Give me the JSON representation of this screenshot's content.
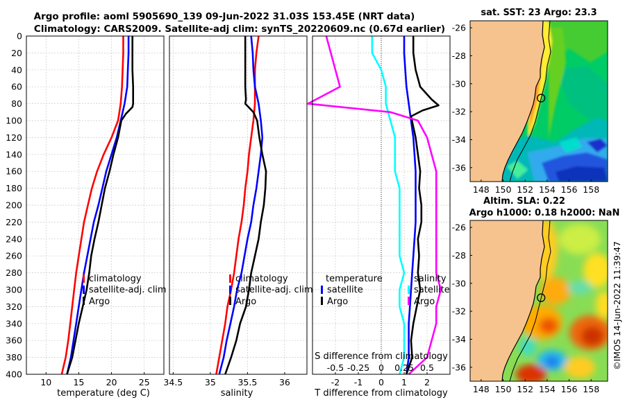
{
  "header": {
    "line1": "Argo profile: aoml 5905690_139 09-Jun-2022 31.03S 153.45E (NRT data)",
    "line2": "Climatology: CARS2009. Satellite-adj clim: synTS_20220609.nc (0.67d earlier)"
  },
  "colors": {
    "climatology": "#ff0000",
    "satellite": "#0000ff",
    "argo": "#000000",
    "salinity_diff": "#ff00ff",
    "salinity_sat": "#00ffff",
    "land": "#f6c38f",
    "grid": "#c9c9c9"
  },
  "chart_data": [
    {
      "type": "line",
      "id": "temperature",
      "xlabel": "temperature (deg C)",
      "ylabel": "",
      "xlim": [
        7,
        28
      ],
      "ylim": [
        400,
        0
      ],
      "x_ticks": [
        10,
        15,
        20,
        25
      ],
      "y_ticks": [
        0,
        20,
        40,
        60,
        80,
        100,
        120,
        140,
        160,
        180,
        200,
        220,
        240,
        260,
        280,
        300,
        320,
        340,
        360,
        380,
        400
      ],
      "legend": [
        "climatology",
        "satellite-adj. clim",
        "Argo"
      ],
      "legend_position": "bottom-right",
      "series": [
        {
          "name": "climatology",
          "color": "#ff0000",
          "points": [
            [
              21.8,
              0
            ],
            [
              21.8,
              20
            ],
            [
              21.7,
              40
            ],
            [
              21.6,
              60
            ],
            [
              21.4,
              80
            ],
            [
              21.0,
              100
            ],
            [
              20.0,
              120
            ],
            [
              18.8,
              140
            ],
            [
              17.8,
              160
            ],
            [
              17.0,
              180
            ],
            [
              16.4,
              200
            ],
            [
              15.8,
              220
            ],
            [
              15.4,
              240
            ],
            [
              15.0,
              260
            ],
            [
              14.6,
              280
            ],
            [
              14.3,
              300
            ],
            [
              14.0,
              320
            ],
            [
              13.7,
              340
            ],
            [
              13.4,
              360
            ],
            [
              13.0,
              380
            ],
            [
              12.4,
              400
            ]
          ]
        },
        {
          "name": "satellite-adj. clim",
          "color": "#0000ff",
          "points": [
            [
              22.6,
              0
            ],
            [
              22.6,
              20
            ],
            [
              22.5,
              40
            ],
            [
              22.4,
              60
            ],
            [
              22.0,
              80
            ],
            [
              21.4,
              100
            ],
            [
              20.8,
              120
            ],
            [
              20.0,
              140
            ],
            [
              19.2,
              160
            ],
            [
              18.6,
              180
            ],
            [
              18.0,
              200
            ],
            [
              17.3,
              220
            ],
            [
              16.8,
              240
            ],
            [
              16.3,
              260
            ],
            [
              15.8,
              280
            ],
            [
              15.4,
              300
            ],
            [
              15.0,
              320
            ],
            [
              14.6,
              340
            ],
            [
              14.2,
              360
            ],
            [
              13.8,
              380
            ],
            [
              13.2,
              400
            ]
          ]
        },
        {
          "name": "Argo",
          "color": "#000000",
          "points": [
            [
              23.2,
              0
            ],
            [
              23.2,
              20
            ],
            [
              23.2,
              40
            ],
            [
              23.3,
              60
            ],
            [
              23.3,
              80
            ],
            [
              23.2,
              84
            ],
            [
              22.2,
              92
            ],
            [
              21.5,
              100
            ],
            [
              21.0,
              120
            ],
            [
              20.3,
              140
            ],
            [
              19.7,
              160
            ],
            [
              19.0,
              180
            ],
            [
              18.5,
              200
            ],
            [
              18.0,
              220
            ],
            [
              17.4,
              240
            ],
            [
              16.9,
              260
            ],
            [
              16.6,
              280
            ],
            [
              16.2,
              300
            ],
            [
              15.6,
              320
            ],
            [
              15.0,
              340
            ],
            [
              14.5,
              360
            ],
            [
              14.0,
              380
            ],
            [
              13.2,
              400
            ]
          ]
        }
      ]
    },
    {
      "type": "line",
      "id": "salinity",
      "xlabel": "salinity",
      "ylabel": "",
      "xlim": [
        34.45,
        36.3
      ],
      "ylim": [
        400,
        0
      ],
      "x_ticks": [
        34.5,
        35,
        35.5,
        36
      ],
      "x_tick_labels": [
        "34.5",
        "35",
        "35.5",
        "36"
      ],
      "y_ticks": [
        0,
        20,
        40,
        60,
        80,
        100,
        120,
        140,
        160,
        180,
        200,
        220,
        240,
        260,
        280,
        300,
        320,
        340,
        360,
        380,
        400
      ],
      "legend": [
        "climatology",
        "satellite-adj. clim",
        "Argo"
      ],
      "legend_position": "bottom-right",
      "series": [
        {
          "name": "climatology",
          "color": "#ff0000",
          "points": [
            [
              35.65,
              0
            ],
            [
              35.62,
              20
            ],
            [
              35.6,
              40
            ],
            [
              35.6,
              60
            ],
            [
              35.6,
              80
            ],
            [
              35.58,
              100
            ],
            [
              35.55,
              120
            ],
            [
              35.52,
              140
            ],
            [
              35.5,
              160
            ],
            [
              35.47,
              180
            ],
            [
              35.45,
              200
            ],
            [
              35.42,
              220
            ],
            [
              35.38,
              240
            ],
            [
              35.35,
              260
            ],
            [
              35.32,
              280
            ],
            [
              35.28,
              300
            ],
            [
              35.23,
              320
            ],
            [
              35.2,
              340
            ],
            [
              35.16,
              360
            ],
            [
              35.12,
              380
            ],
            [
              35.08,
              400
            ]
          ]
        },
        {
          "name": "satellite-adj. clim",
          "color": "#0000ff",
          "points": [
            [
              35.55,
              0
            ],
            [
              35.57,
              20
            ],
            [
              35.58,
              40
            ],
            [
              35.6,
              60
            ],
            [
              35.65,
              80
            ],
            [
              35.68,
              100
            ],
            [
              35.7,
              120
            ],
            [
              35.68,
              140
            ],
            [
              35.65,
              160
            ],
            [
              35.62,
              180
            ],
            [
              35.58,
              200
            ],
            [
              35.55,
              220
            ],
            [
              35.5,
              240
            ],
            [
              35.46,
              260
            ],
            [
              35.42,
              280
            ],
            [
              35.36,
              300
            ],
            [
              35.32,
              320
            ],
            [
              35.27,
              340
            ],
            [
              35.22,
              360
            ],
            [
              35.18,
              380
            ],
            [
              35.12,
              400
            ]
          ]
        },
        {
          "name": "Argo",
          "color": "#000000",
          "points": [
            [
              35.47,
              0
            ],
            [
              35.47,
              20
            ],
            [
              35.47,
              40
            ],
            [
              35.47,
              60
            ],
            [
              35.48,
              75
            ],
            [
              35.47,
              80
            ],
            [
              35.58,
              90
            ],
            [
              35.63,
              100
            ],
            [
              35.66,
              120
            ],
            [
              35.7,
              140
            ],
            [
              35.75,
              160
            ],
            [
              35.74,
              180
            ],
            [
              35.72,
              200
            ],
            [
              35.68,
              220
            ],
            [
              35.65,
              240
            ],
            [
              35.6,
              260
            ],
            [
              35.55,
              280
            ],
            [
              35.52,
              300
            ],
            [
              35.48,
              320
            ],
            [
              35.4,
              340
            ],
            [
              35.35,
              360
            ],
            [
              35.28,
              380
            ],
            [
              35.2,
              400
            ]
          ]
        }
      ]
    },
    {
      "type": "line",
      "id": "difference",
      "xlabel": "T difference from climatology",
      "ylabel": "",
      "secondary_xlabel": "S difference from climatology",
      "xlim": [
        -3,
        3
      ],
      "ylim": [
        400,
        0
      ],
      "x_ticks": [
        -2,
        -1,
        0,
        1,
        2
      ],
      "secondary_x_ticks": [
        -0.5,
        -0.25,
        0,
        0.25,
        0.5
      ],
      "secondary_x_tick_labels": [
        "-0.5",
        "-0.25",
        "0",
        "0.25",
        "0.5"
      ],
      "y_ticks": [
        0,
        20,
        40,
        60,
        80,
        100,
        120,
        140,
        160,
        180,
        200,
        220,
        240,
        260,
        280,
        300,
        320,
        340,
        360,
        380,
        400
      ],
      "legend": [
        "temperature",
        "satellite",
        "Argo",
        "salinity",
        "satellite",
        "Argo"
      ],
      "legend_position": "bottom",
      "series": [
        {
          "name": "temperature satellite",
          "color": "#0000ff",
          "points": [
            [
              1.0,
              0
            ],
            [
              1.0,
              20
            ],
            [
              1.05,
              40
            ],
            [
              1.1,
              60
            ],
            [
              1.2,
              80
            ],
            [
              1.3,
              100
            ],
            [
              1.4,
              120
            ],
            [
              1.45,
              140
            ],
            [
              1.5,
              160
            ],
            [
              1.5,
              180
            ],
            [
              1.5,
              200
            ],
            [
              1.5,
              220
            ],
            [
              1.45,
              240
            ],
            [
              1.4,
              260
            ],
            [
              1.35,
              280
            ],
            [
              1.3,
              300
            ],
            [
              1.25,
              320
            ],
            [
              1.2,
              340
            ],
            [
              1.2,
              360
            ],
            [
              1.2,
              380
            ],
            [
              1.1,
              400
            ]
          ]
        },
        {
          "name": "temperature Argo",
          "color": "#000000",
          "points": [
            [
              1.4,
              0
            ],
            [
              1.4,
              20
            ],
            [
              1.5,
              40
            ],
            [
              1.7,
              60
            ],
            [
              2.2,
              75
            ],
            [
              2.5,
              82
            ],
            [
              1.8,
              88
            ],
            [
              1.3,
              95
            ],
            [
              1.5,
              120
            ],
            [
              1.6,
              140
            ],
            [
              1.7,
              160
            ],
            [
              1.65,
              180
            ],
            [
              1.75,
              200
            ],
            [
              1.75,
              220
            ],
            [
              1.6,
              240
            ],
            [
              1.65,
              260
            ],
            [
              1.6,
              280
            ],
            [
              1.7,
              300
            ],
            [
              1.55,
              320
            ],
            [
              1.4,
              340
            ],
            [
              1.3,
              360
            ],
            [
              1.35,
              380
            ],
            [
              1.1,
              400
            ]
          ]
        },
        {
          "name": "salinity satellite",
          "color": "#00ffff",
          "points": [
            [
              -0.1,
              0
            ],
            [
              -0.1,
              20
            ],
            [
              0.0,
              40
            ],
            [
              0.05,
              60
            ],
            [
              0.05,
              80
            ],
            [
              0.1,
              100
            ],
            [
              0.15,
              120
            ],
            [
              0.15,
              140
            ],
            [
              0.15,
              160
            ],
            [
              0.2,
              180
            ],
            [
              0.2,
              200
            ],
            [
              0.2,
              220
            ],
            [
              0.2,
              240
            ],
            [
              0.2,
              260
            ],
            [
              0.25,
              280
            ],
            [
              0.2,
              300
            ],
            [
              0.2,
              320
            ],
            [
              0.25,
              340
            ],
            [
              0.25,
              360
            ],
            [
              0.25,
              380
            ],
            [
              0.2,
              400
            ]
          ]
        },
        {
          "name": "salinity Argo",
          "color": "#ff00ff",
          "points": [
            [
              -0.6,
              0
            ],
            [
              -0.55,
              20
            ],
            [
              -0.5,
              40
            ],
            [
              -0.45,
              60
            ],
            [
              -0.8,
              80
            ],
            [
              0.1,
              90
            ],
            [
              0.4,
              100
            ],
            [
              0.5,
              120
            ],
            [
              0.55,
              140
            ],
            [
              0.6,
              160
            ],
            [
              0.6,
              180
            ],
            [
              0.6,
              200
            ],
            [
              0.6,
              220
            ],
            [
              0.6,
              240
            ],
            [
              0.6,
              260
            ],
            [
              0.6,
              280
            ],
            [
              0.65,
              300
            ],
            [
              0.6,
              320
            ],
            [
              0.6,
              340
            ],
            [
              0.55,
              360
            ],
            [
              0.5,
              380
            ],
            [
              0.3,
              400
            ]
          ]
        }
      ]
    },
    {
      "type": "heatmap",
      "id": "sst_map",
      "title": "sat. SST: 23 Argo: 23.3",
      "xlim": [
        147.0,
        159.5
      ],
      "ylim": [
        -37.0,
        -25.5
      ],
      "x_ticks": [
        148,
        150,
        152,
        154,
        156,
        158
      ],
      "y_ticks": [
        -26,
        -28,
        -30,
        -32,
        -34,
        -36
      ],
      "marker": {
        "lon": 153.45,
        "lat": -31.03
      }
    },
    {
      "type": "heatmap",
      "id": "sla_map",
      "title": "Altim. SLA: 0.22",
      "subtitle": "Argo h1000: 0.18 h2000: NaN",
      "xlim": [
        147.0,
        159.5
      ],
      "ylim": [
        -37.0,
        -25.5
      ],
      "x_ticks": [
        148,
        150,
        152,
        154,
        156,
        158
      ],
      "y_ticks": [
        -26,
        -28,
        -30,
        -32,
        -34,
        -36
      ],
      "marker": {
        "lon": 153.45,
        "lat": -31.03
      }
    }
  ],
  "credit": "©IMOS 14-Jun-2022 11:39:47"
}
